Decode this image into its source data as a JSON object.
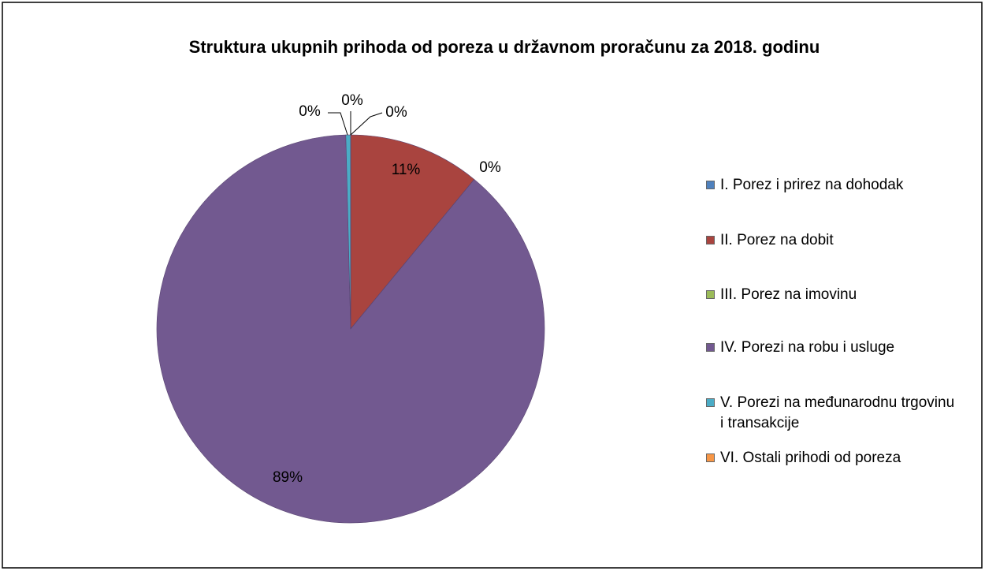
{
  "chart_data": {
    "type": "pie",
    "title": "Struktura ukupnih prihoda od poreza u državnom proračunu za 2018. godinu",
    "categories": [
      "I. Porez i prirez na dohodak",
      "II. Porez na dobit",
      "III. Porez na imovinu",
      "IV. Porezi na robu i usluge",
      "V. Porezi na međunarodnu trgovinu i transakcije",
      "VI. Ostali prihodi od poreza"
    ],
    "values": [
      0,
      11,
      0,
      88.6,
      0.4,
      0
    ],
    "value_labels": [
      "0%",
      "11%",
      "0%",
      "89%",
      "0%",
      "0%"
    ],
    "colors": [
      "#4f81bd",
      "#a9443f",
      "#9bbb59",
      "#725990",
      "#4bacc6",
      "#f79646"
    ],
    "legend": "right"
  }
}
